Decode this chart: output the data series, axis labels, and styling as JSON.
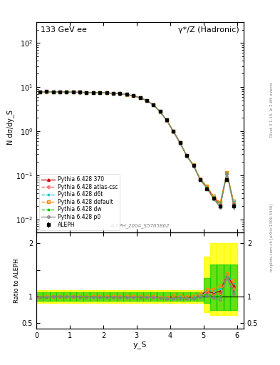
{
  "title_left": "133 GeV ee",
  "title_right": "γ*/Z (Hadronic)",
  "xlabel": "y_S",
  "ylabel_top": "N dσ/dy_S",
  "ylabel_bot": "Ratio to ALEPH",
  "watermark": "ALEPH_2004_S5765862",
  "right_label": "Rivet 3.1.10, ≥ 2.6M events",
  "arxiv_label": "mcplots.cern.ch [arXiv:1306.3436]",
  "ys_data": [
    0.1,
    0.3,
    0.5,
    0.7,
    0.9,
    1.1,
    1.3,
    1.5,
    1.7,
    1.9,
    2.1,
    2.3,
    2.5,
    2.7,
    2.9,
    3.1,
    3.3,
    3.5,
    3.7,
    3.9,
    4.1,
    4.3,
    4.5,
    4.7,
    4.9,
    5.1,
    5.3,
    5.5,
    5.7,
    5.9
  ],
  "aleph_y": [
    7.8,
    7.9,
    7.85,
    7.8,
    7.75,
    7.7,
    7.65,
    7.6,
    7.55,
    7.5,
    7.4,
    7.3,
    7.1,
    6.8,
    6.4,
    5.8,
    5.0,
    4.0,
    2.8,
    1.8,
    1.0,
    0.55,
    0.28,
    0.17,
    0.08,
    0.05,
    0.03,
    0.02,
    0.08,
    0.02
  ],
  "aleph_err_lo": [
    0.3,
    0.3,
    0.3,
    0.3,
    0.3,
    0.28,
    0.28,
    0.27,
    0.27,
    0.26,
    0.25,
    0.24,
    0.22,
    0.2,
    0.18,
    0.15,
    0.12,
    0.09,
    0.06,
    0.04,
    0.025,
    0.015,
    0.01,
    0.008,
    0.005,
    0.003,
    0.002,
    0.002,
    0.01,
    0.003
  ],
  "aleph_err_hi": [
    0.3,
    0.3,
    0.3,
    0.3,
    0.3,
    0.28,
    0.28,
    0.27,
    0.27,
    0.26,
    0.25,
    0.24,
    0.22,
    0.2,
    0.18,
    0.15,
    0.12,
    0.09,
    0.06,
    0.04,
    0.025,
    0.015,
    0.01,
    0.008,
    0.005,
    0.003,
    0.002,
    0.002,
    0.01,
    0.003
  ],
  "pythia_370_y": [
    7.7,
    7.85,
    7.83,
    7.78,
    7.73,
    7.68,
    7.62,
    7.57,
    7.52,
    7.46,
    7.36,
    7.26,
    7.06,
    6.76,
    6.36,
    5.76,
    4.96,
    3.96,
    2.76,
    1.76,
    0.99,
    0.545,
    0.275,
    0.168,
    0.082,
    0.055,
    0.032,
    0.022,
    0.112,
    0.024
  ],
  "pythia_atl_y": [
    7.7,
    7.84,
    7.82,
    7.77,
    7.72,
    7.67,
    7.61,
    7.56,
    7.51,
    7.45,
    7.35,
    7.25,
    7.05,
    6.75,
    6.35,
    5.75,
    4.95,
    3.95,
    2.75,
    1.75,
    0.98,
    0.54,
    0.274,
    0.167,
    0.081,
    0.054,
    0.031,
    0.021,
    0.111,
    0.023
  ],
  "pythia_d6t_y": [
    7.71,
    7.86,
    7.84,
    7.79,
    7.74,
    7.69,
    7.63,
    7.58,
    7.53,
    7.47,
    7.37,
    7.27,
    7.07,
    6.77,
    6.37,
    5.77,
    4.97,
    3.97,
    2.77,
    1.77,
    1.0,
    0.55,
    0.277,
    0.169,
    0.083,
    0.056,
    0.033,
    0.023,
    0.113,
    0.025
  ],
  "pythia_def_y": [
    7.72,
    7.87,
    7.85,
    7.8,
    7.75,
    7.7,
    7.64,
    7.59,
    7.54,
    7.48,
    7.38,
    7.28,
    7.08,
    6.78,
    6.38,
    5.78,
    4.98,
    3.98,
    2.78,
    1.78,
    1.01,
    0.555,
    0.279,
    0.171,
    0.084,
    0.057,
    0.034,
    0.024,
    0.114,
    0.026
  ],
  "pythia_dw_y": [
    7.69,
    7.83,
    7.81,
    7.76,
    7.71,
    7.66,
    7.6,
    7.55,
    7.5,
    7.44,
    7.34,
    7.24,
    7.04,
    6.74,
    6.34,
    5.74,
    4.94,
    3.94,
    2.74,
    1.74,
    0.97,
    0.535,
    0.272,
    0.165,
    0.08,
    0.052,
    0.03,
    0.02,
    0.11,
    0.022
  ],
  "pythia_p0_y": [
    7.68,
    7.82,
    7.8,
    7.75,
    7.7,
    7.65,
    7.59,
    7.54,
    7.49,
    7.43,
    7.33,
    7.23,
    7.03,
    6.73,
    6.33,
    5.73,
    4.93,
    3.93,
    2.73,
    1.73,
    0.96,
    0.53,
    0.27,
    0.163,
    0.079,
    0.051,
    0.029,
    0.019,
    0.109,
    0.021
  ],
  "band_yellow_lo": [
    0.88,
    0.88,
    0.88,
    0.88,
    0.88,
    0.88,
    0.88,
    0.88,
    0.88,
    0.88,
    0.88,
    0.88,
    0.88,
    0.88,
    0.88,
    0.88,
    0.88,
    0.88,
    0.88,
    0.88,
    0.88,
    0.88,
    0.88,
    0.88,
    0.88,
    0.7,
    0.65,
    0.65,
    0.65,
    0.65
  ],
  "band_yellow_hi": [
    1.12,
    1.12,
    1.12,
    1.12,
    1.12,
    1.12,
    1.12,
    1.12,
    1.12,
    1.12,
    1.12,
    1.12,
    1.12,
    1.12,
    1.12,
    1.12,
    1.12,
    1.12,
    1.12,
    1.12,
    1.12,
    1.12,
    1.12,
    1.12,
    1.12,
    1.75,
    2.0,
    2.0,
    2.0,
    2.0
  ],
  "band_green_lo": [
    0.92,
    0.92,
    0.92,
    0.92,
    0.92,
    0.92,
    0.92,
    0.92,
    0.92,
    0.92,
    0.92,
    0.92,
    0.92,
    0.92,
    0.92,
    0.92,
    0.92,
    0.92,
    0.92,
    0.92,
    0.92,
    0.92,
    0.92,
    0.92,
    0.92,
    0.88,
    0.75,
    0.75,
    0.75,
    0.75
  ],
  "band_green_hi": [
    1.08,
    1.08,
    1.08,
    1.08,
    1.08,
    1.08,
    1.08,
    1.08,
    1.08,
    1.08,
    1.08,
    1.08,
    1.08,
    1.08,
    1.08,
    1.08,
    1.08,
    1.08,
    1.08,
    1.08,
    1.08,
    1.08,
    1.08,
    1.08,
    1.08,
    1.35,
    1.6,
    1.6,
    1.6,
    1.6
  ],
  "color_370": "#cc0000",
  "color_atl": "#ff6666",
  "color_d6t": "#00cccc",
  "color_def": "#ff8800",
  "color_dw": "#00cc00",
  "color_p0": "#888888",
  "color_aleph": "#000000",
  "color_yellow": "#ffff00",
  "color_green": "#00cc00"
}
